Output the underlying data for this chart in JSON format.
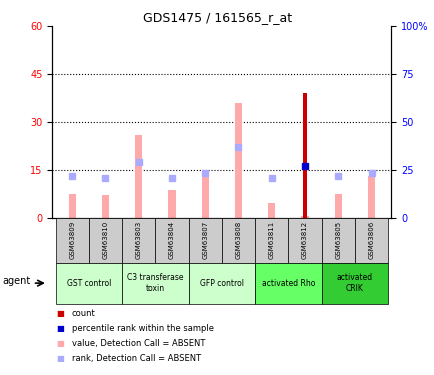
{
  "title": "GDS1475 / 161565_r_at",
  "samples": [
    "GSM63809",
    "GSM63810",
    "GSM63803",
    "GSM63804",
    "GSM63807",
    "GSM63808",
    "GSM63811",
    "GSM63812",
    "GSM63805",
    "GSM63806"
  ],
  "value_absent": [
    7.5,
    7.0,
    26.0,
    8.5,
    13.0,
    36.0,
    4.5,
    0.5,
    7.5,
    13.0
  ],
  "rank_absent": [
    13.0,
    12.5,
    17.5,
    12.5,
    14.0,
    22.0,
    12.5,
    0.0,
    13.0,
    14.0
  ],
  "count_present": [
    0,
    0,
    0,
    0,
    0,
    0,
    0,
    39.0,
    0,
    0
  ],
  "percentile_present": [
    0,
    0,
    0,
    0,
    0,
    0,
    0,
    27.0,
    0,
    0
  ],
  "ylim_left": [
    0,
    60
  ],
  "ylim_right": [
    0,
    100
  ],
  "yticks_left": [
    0,
    15,
    30,
    45,
    60
  ],
  "yticks_right": [
    0,
    25,
    50,
    75,
    100
  ],
  "yticklabels_right": [
    "0",
    "25",
    "50",
    "75",
    "100%"
  ],
  "color_count": "#cc0000",
  "color_percentile": "#0000cc",
  "color_value_absent": "#ffaaaa",
  "color_rank_absent": "#aaaaff",
  "background_color": "#ffffff",
  "sample_bg": "#cccccc",
  "group_colors": [
    "#ccffcc",
    "#ccffcc",
    "#ccffcc",
    "#66ff66",
    "#33cc33"
  ],
  "group_defs": [
    [
      0,
      2,
      "GST control"
    ],
    [
      2,
      4,
      "C3 transferase\ntoxin"
    ],
    [
      4,
      6,
      "GFP control"
    ],
    [
      6,
      8,
      "activated Rho"
    ],
    [
      8,
      10,
      "activated\nCRIK"
    ]
  ],
  "thin_bar_width": 0.12,
  "rank_marker_size": 5
}
